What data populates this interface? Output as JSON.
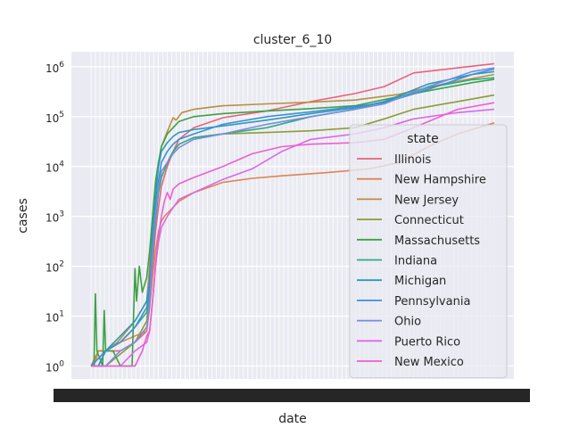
{
  "chart_data": {
    "type": "line",
    "title": "cluster_6_10",
    "xlabel": "date",
    "ylabel": "cases",
    "yscale": "log",
    "ylim": [
      0.55,
      2000000
    ],
    "x_range_days": [
      0,
      275
    ],
    "y_ticks": [
      {
        "value": 1,
        "base": "10",
        "exp": "0"
      },
      {
        "value": 10,
        "base": "10",
        "exp": "1"
      },
      {
        "value": 100,
        "base": "10",
        "exp": "2"
      },
      {
        "value": 1000,
        "base": "10",
        "exp": "3"
      },
      {
        "value": 10000,
        "base": "10",
        "exp": "4"
      },
      {
        "value": 100000,
        "base": "10",
        "exp": "5"
      },
      {
        "value": 1000000,
        "base": "10",
        "exp": "6"
      }
    ],
    "grid": true,
    "legend": {
      "title": "state",
      "placement": "center-right"
    },
    "series": [
      {
        "name": "Illinois",
        "color": "#e8637a",
        "points": [
          [
            0,
            1
          ],
          [
            5,
            1
          ],
          [
            10,
            2
          ],
          [
            20,
            2
          ],
          [
            30,
            3
          ],
          [
            38,
            5
          ],
          [
            40,
            20
          ],
          [
            42,
            100
          ],
          [
            44,
            500
          ],
          [
            46,
            1500
          ],
          [
            48,
            4000
          ],
          [
            52,
            10000
          ],
          [
            56,
            20000
          ],
          [
            60,
            35000
          ],
          [
            70,
            60000
          ],
          [
            90,
            95000
          ],
          [
            120,
            130000
          ],
          [
            150,
            200000
          ],
          [
            180,
            290000
          ],
          [
            200,
            400000
          ],
          [
            220,
            750000
          ],
          [
            250,
            950000
          ],
          [
            275,
            1150000
          ]
        ]
      },
      {
        "name": "New Hampshire",
        "color": "#dd8452",
        "points": [
          [
            0,
            1
          ],
          [
            2,
            1
          ],
          [
            5,
            2
          ],
          [
            10,
            2
          ],
          [
            20,
            3
          ],
          [
            30,
            4
          ],
          [
            38,
            5
          ],
          [
            40,
            15
          ],
          [
            42,
            60
          ],
          [
            44,
            200
          ],
          [
            46,
            500
          ],
          [
            48,
            800
          ],
          [
            50,
            1000
          ],
          [
            60,
            2000
          ],
          [
            70,
            3000
          ],
          [
            90,
            4800
          ],
          [
            110,
            5800
          ],
          [
            130,
            6500
          ],
          [
            160,
            7500
          ],
          [
            190,
            9000
          ],
          [
            210,
            12000
          ],
          [
            230,
            25000
          ],
          [
            250,
            45000
          ],
          [
            275,
            75000
          ]
        ]
      },
      {
        "name": "New Jersey",
        "color": "#b8903c",
        "points": [
          [
            0,
            1
          ],
          [
            5,
            2
          ],
          [
            10,
            2
          ],
          [
            18,
            3
          ],
          [
            30,
            8
          ],
          [
            38,
            20
          ],
          [
            40,
            100
          ],
          [
            41,
            400
          ],
          [
            42,
            150
          ],
          [
            43,
            800
          ],
          [
            44,
            3000
          ],
          [
            46,
            10000
          ],
          [
            48,
            25000
          ],
          [
            52,
            50000
          ],
          [
            56,
            95000
          ],
          [
            58,
            85000
          ],
          [
            62,
            120000
          ],
          [
            70,
            140000
          ],
          [
            90,
            165000
          ],
          [
            120,
            180000
          ],
          [
            150,
            195000
          ],
          [
            180,
            215000
          ],
          [
            210,
            280000
          ],
          [
            240,
            450000
          ],
          [
            275,
            700000
          ]
        ]
      },
      {
        "name": "Connecticut",
        "color": "#8c9d34",
        "points": [
          [
            0,
            1
          ],
          [
            10,
            1
          ],
          [
            30,
            3
          ],
          [
            38,
            8
          ],
          [
            40,
            40
          ],
          [
            42,
            150
          ],
          [
            44,
            1000
          ],
          [
            46,
            3000
          ],
          [
            48,
            6000
          ],
          [
            52,
            12000
          ],
          [
            56,
            20000
          ],
          [
            60,
            28000
          ],
          [
            70,
            38000
          ],
          [
            90,
            45000
          ],
          [
            120,
            48000
          ],
          [
            150,
            52000
          ],
          [
            180,
            60000
          ],
          [
            200,
            90000
          ],
          [
            220,
            140000
          ],
          [
            250,
            200000
          ],
          [
            275,
            270000
          ]
        ]
      },
      {
        "name": "Massachusetts",
        "color": "#3ca142",
        "points": [
          [
            0,
            1
          ],
          [
            2,
            1
          ],
          [
            3,
            28
          ],
          [
            4,
            2
          ],
          [
            8,
            1
          ],
          [
            9,
            13
          ],
          [
            10,
            2
          ],
          [
            15,
            2
          ],
          [
            20,
            1
          ],
          [
            28,
            1
          ],
          [
            30,
            90
          ],
          [
            31,
            20
          ],
          [
            33,
            100
          ],
          [
            35,
            30
          ],
          [
            38,
            60
          ],
          [
            40,
            200
          ],
          [
            42,
            1000
          ],
          [
            44,
            5000
          ],
          [
            46,
            12000
          ],
          [
            48,
            25000
          ],
          [
            52,
            45000
          ],
          [
            56,
            60000
          ],
          [
            60,
            80000
          ],
          [
            70,
            100000
          ],
          [
            90,
            115000
          ],
          [
            120,
            130000
          ],
          [
            150,
            145000
          ],
          [
            180,
            165000
          ],
          [
            200,
            220000
          ],
          [
            230,
            330000
          ],
          [
            260,
            480000
          ],
          [
            275,
            560000
          ]
        ]
      },
      {
        "name": "Indiana",
        "color": "#2eac87",
        "points": [
          [
            0,
            1
          ],
          [
            10,
            2
          ],
          [
            20,
            3
          ],
          [
            30,
            6
          ],
          [
            38,
            12
          ],
          [
            40,
            30
          ],
          [
            42,
            150
          ],
          [
            44,
            800
          ],
          [
            46,
            3000
          ],
          [
            48,
            6000
          ],
          [
            52,
            12000
          ],
          [
            56,
            20000
          ],
          [
            60,
            28000
          ],
          [
            70,
            38000
          ],
          [
            90,
            45000
          ],
          [
            120,
            60000
          ],
          [
            150,
            100000
          ],
          [
            180,
            140000
          ],
          [
            200,
            200000
          ],
          [
            230,
            380000
          ],
          [
            260,
            550000
          ],
          [
            275,
            600000
          ]
        ]
      },
      {
        "name": "Michigan",
        "color": "#2a9ab8",
        "points": [
          [
            0,
            1
          ],
          [
            5,
            1
          ],
          [
            10,
            2
          ],
          [
            20,
            4
          ],
          [
            30,
            8
          ],
          [
            38,
            20
          ],
          [
            40,
            50
          ],
          [
            42,
            500
          ],
          [
            44,
            2500
          ],
          [
            46,
            10000
          ],
          [
            48,
            20000
          ],
          [
            52,
            30000
          ],
          [
            56,
            40000
          ],
          [
            60,
            48000
          ],
          [
            70,
            55000
          ],
          [
            90,
            65000
          ],
          [
            120,
            85000
          ],
          [
            150,
            115000
          ],
          [
            180,
            150000
          ],
          [
            200,
            200000
          ],
          [
            230,
            450000
          ],
          [
            260,
            700000
          ],
          [
            275,
            800000
          ]
        ]
      },
      {
        "name": "Pennsylvania",
        "color": "#3c8ed9",
        "points": [
          [
            0,
            1
          ],
          [
            10,
            2
          ],
          [
            20,
            3
          ],
          [
            30,
            6
          ],
          [
            38,
            15
          ],
          [
            40,
            40
          ],
          [
            42,
            300
          ],
          [
            44,
            1500
          ],
          [
            46,
            5000
          ],
          [
            48,
            12000
          ],
          [
            52,
            20000
          ],
          [
            56,
            28000
          ],
          [
            60,
            35000
          ],
          [
            70,
            45000
          ],
          [
            90,
            70000
          ],
          [
            120,
            100000
          ],
          [
            150,
            125000
          ],
          [
            180,
            160000
          ],
          [
            200,
            190000
          ],
          [
            230,
            350000
          ],
          [
            260,
            700000
          ],
          [
            275,
            900000
          ]
        ]
      },
      {
        "name": "Ohio",
        "color": "#7b8bde",
        "points": [
          [
            0,
            1
          ],
          [
            10,
            1
          ],
          [
            20,
            2
          ],
          [
            30,
            3
          ],
          [
            38,
            6
          ],
          [
            40,
            15
          ],
          [
            42,
            200
          ],
          [
            44,
            1000
          ],
          [
            46,
            4000
          ],
          [
            48,
            8000
          ],
          [
            52,
            12000
          ],
          [
            56,
            18000
          ],
          [
            60,
            24000
          ],
          [
            70,
            35000
          ],
          [
            90,
            45000
          ],
          [
            120,
            70000
          ],
          [
            150,
            100000
          ],
          [
            180,
            140000
          ],
          [
            200,
            180000
          ],
          [
            230,
            400000
          ],
          [
            260,
            800000
          ],
          [
            275,
            950000
          ]
        ]
      },
      {
        "name": "Puerto Rico",
        "color": "#d96ae6",
        "points": [
          [
            0,
            1
          ],
          [
            10,
            1
          ],
          [
            20,
            1
          ],
          [
            30,
            2
          ],
          [
            38,
            3
          ],
          [
            40,
            5
          ],
          [
            42,
            20
          ],
          [
            44,
            100
          ],
          [
            46,
            300
          ],
          [
            48,
            600
          ],
          [
            52,
            1000
          ],
          [
            56,
            1500
          ],
          [
            60,
            2200
          ],
          [
            70,
            3000
          ],
          [
            90,
            5500
          ],
          [
            110,
            9000
          ],
          [
            130,
            20000
          ],
          [
            150,
            35000
          ],
          [
            180,
            45000
          ],
          [
            200,
            60000
          ],
          [
            220,
            90000
          ],
          [
            250,
            120000
          ],
          [
            275,
            140000
          ]
        ]
      },
      {
        "name": "New Mexico",
        "color": "#ed5fd0",
        "points": [
          [
            0,
            1
          ],
          [
            10,
            1
          ],
          [
            20,
            1
          ],
          [
            30,
            1
          ],
          [
            35,
            2
          ],
          [
            38,
            4
          ],
          [
            40,
            5
          ],
          [
            42,
            20
          ],
          [
            44,
            100
          ],
          [
            46,
            400
          ],
          [
            48,
            1000
          ],
          [
            50,
            2000
          ],
          [
            52,
            3000
          ],
          [
            54,
            2200
          ],
          [
            56,
            3500
          ],
          [
            60,
            4500
          ],
          [
            70,
            6000
          ],
          [
            90,
            10000
          ],
          [
            110,
            18000
          ],
          [
            130,
            25000
          ],
          [
            150,
            28000
          ],
          [
            180,
            30000
          ],
          [
            200,
            35000
          ],
          [
            220,
            60000
          ],
          [
            250,
            140000
          ],
          [
            275,
            190000
          ]
        ]
      }
    ]
  }
}
